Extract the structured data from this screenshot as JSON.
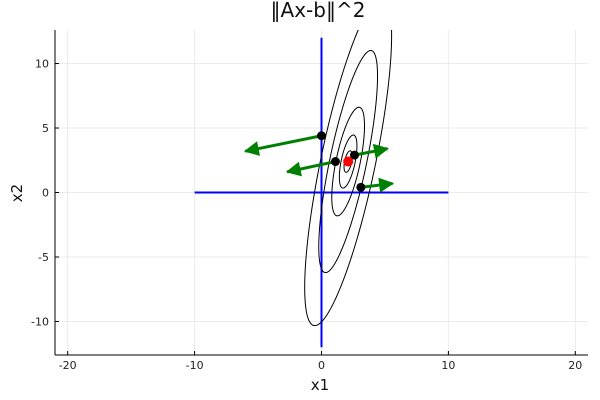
{
  "chart_data": {
    "type": "scatter",
    "title": "‖Ax-b‖^2",
    "xlabel": "x1",
    "ylabel": "x2",
    "xlim": [
      -21,
      21
    ],
    "ylim": [
      -12.6,
      12.6
    ],
    "xticks": [
      -20,
      -10,
      0,
      10,
      20
    ],
    "yticks": [
      -10,
      -5,
      0,
      5,
      10
    ],
    "grid": true,
    "legend": "none",
    "colors": {
      "axes_lines": "#0000ff",
      "contours": "#000000",
      "points": "#000000",
      "optimum": "#ff0000",
      "arrows": "#008000",
      "grid": "#ebebeb"
    },
    "reference_lines": [
      {
        "x": [
          -10,
          10
        ],
        "y": [
          0,
          0
        ]
      },
      {
        "x": [
          0,
          0
        ],
        "y": [
          -12,
          12
        ]
      }
    ],
    "contours": [
      {
        "center": [
          2.1,
          2.4
        ],
        "a": 0.85,
        "b": 0.28,
        "angle_deg": 78
      },
      {
        "center": [
          2.1,
          2.4
        ],
        "a": 2.1,
        "b": 0.55,
        "angle_deg": 78
      },
      {
        "center": [
          2.1,
          2.4
        ],
        "a": 4.3,
        "b": 0.95,
        "angle_deg": 78
      },
      {
        "center": [
          2.1,
          2.4
        ],
        "a": 8.8,
        "b": 1.45,
        "angle_deg": 78
      },
      {
        "center": [
          2.1,
          2.4
        ],
        "a": 13.0,
        "b": 2.15,
        "angle_deg": 78
      }
    ],
    "points": [
      {
        "x": 0.0,
        "y": 4.4
      },
      {
        "x": 1.1,
        "y": 2.4
      },
      {
        "x": 2.6,
        "y": 2.9
      },
      {
        "x": 3.1,
        "y": 0.4
      }
    ],
    "optimum": {
      "x": 2.1,
      "y": 2.4
    },
    "arrows": [
      {
        "from": [
          0.0,
          4.4
        ],
        "to": [
          -6.0,
          3.2
        ]
      },
      {
        "from": [
          1.1,
          2.4
        ],
        "to": [
          -2.7,
          1.6
        ]
      },
      {
        "from": [
          2.6,
          2.9
        ],
        "to": [
          5.2,
          3.4
        ]
      },
      {
        "from": [
          3.1,
          0.4
        ],
        "to": [
          5.6,
          0.7
        ]
      }
    ]
  }
}
